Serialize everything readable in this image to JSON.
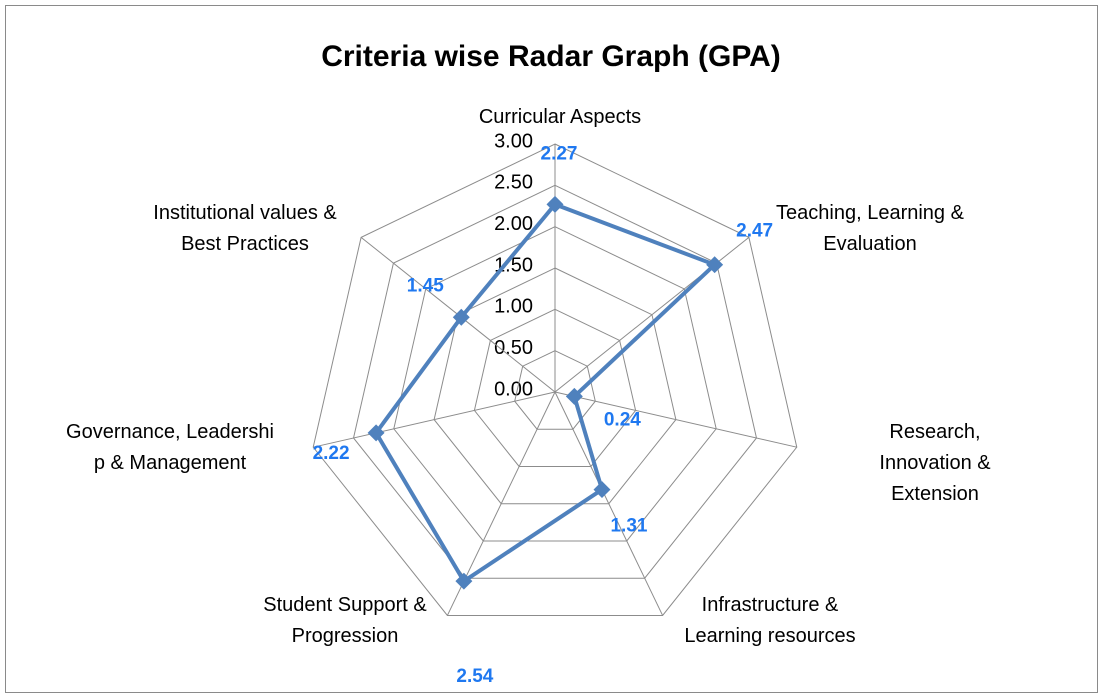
{
  "chart_data": {
    "type": "radar",
    "title": "Criteria wise Radar Graph (GPA)",
    "categories": [
      "Curricular Aspects",
      "Teaching, Learning &\nEvaluation",
      "Research, Innovation &\nExtension",
      "Infrastructure &\nLearning resources",
      "Student Support &\nProgression",
      "Governance, Leadershi\np & Management",
      "Institutional values &\nBest Practices"
    ],
    "series": [
      {
        "name": "GPA",
        "color": "#4f81bd",
        "values": [
          2.27,
          2.47,
          0.24,
          1.31,
          2.54,
          2.22,
          1.45
        ]
      }
    ],
    "ylim": [
      0,
      3
    ],
    "yticks": [
      {
        "value": 0,
        "label": "0.00"
      },
      {
        "value": 0.5,
        "label": "0.50"
      },
      {
        "value": 1,
        "label": "1.00"
      },
      {
        "value": 1.5,
        "label": "1.50"
      },
      {
        "value": 2,
        "label": "2.00"
      },
      {
        "value": 2.5,
        "label": "2.50"
      },
      {
        "value": 3,
        "label": "3.00"
      }
    ],
    "grid": true
  }
}
